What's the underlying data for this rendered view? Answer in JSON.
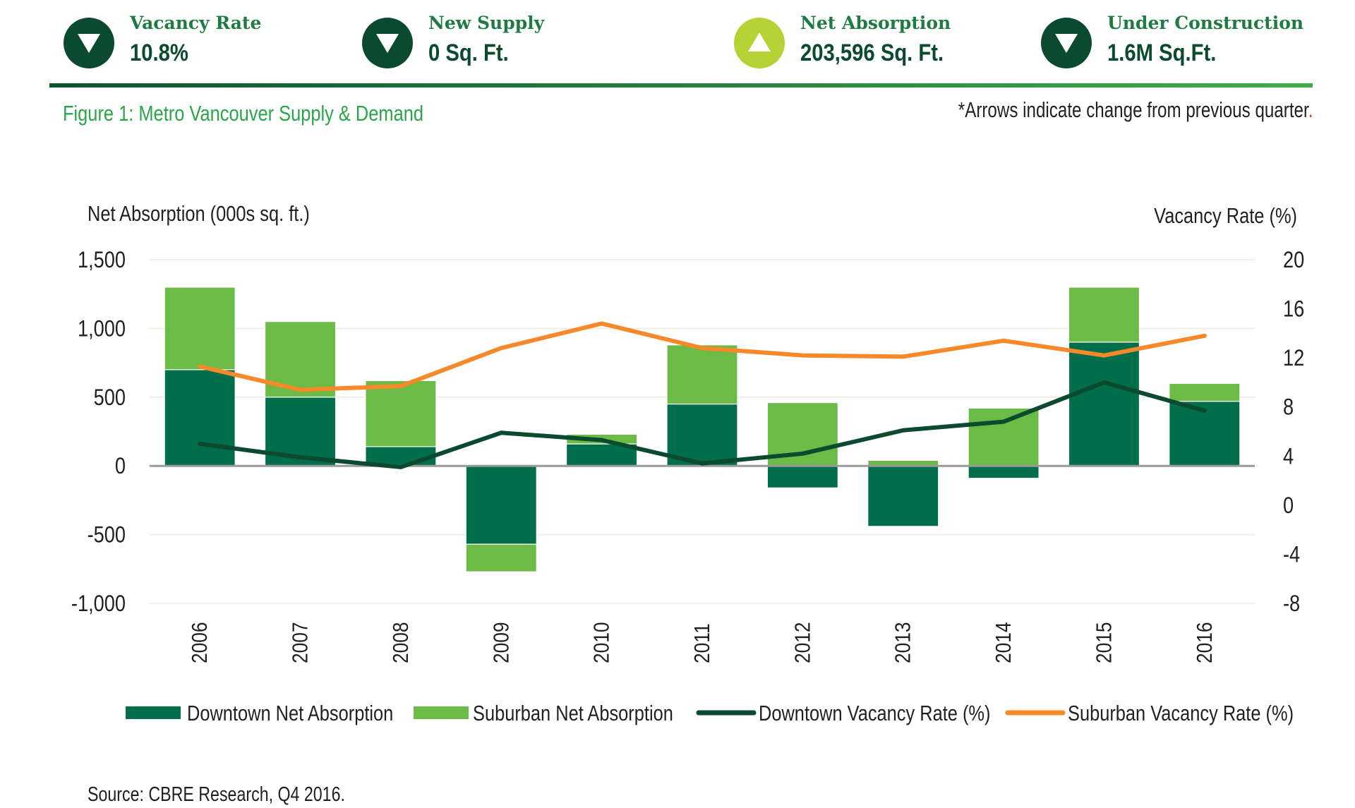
{
  "kpis": [
    {
      "label": "Vacancy Rate",
      "value": "10.8%",
      "direction": "down",
      "badge_color": "#0b4a2f"
    },
    {
      "label": "New Supply",
      "value": "0 Sq. Ft.",
      "direction": "down",
      "badge_color": "#0b4a2f"
    },
    {
      "label": "Net Absorption",
      "value": "203,596 Sq. Ft.",
      "direction": "up",
      "badge_color": "#b5d334"
    },
    {
      "label": "Under Construction",
      "value": "1.6M Sq.Ft.",
      "direction": "down",
      "badge_color": "#0b4a2f"
    }
  ],
  "figure": {
    "title": "Figure 1: Metro Vancouver Supply & Demand",
    "note": "*Arrows indicate change from previous quarter",
    "note_end": "."
  },
  "source": "Source: CBRE Research, Q4 2016.",
  "chart_data": {
    "type": "bar",
    "stacked": true,
    "categories": [
      "2006",
      "2007",
      "2008",
      "2009",
      "2010",
      "2011",
      "2012",
      "2013",
      "2014",
      "2015",
      "2016"
    ],
    "ylabel": "Net Absorption (000s sq. ft.)",
    "y2label": "Vacancy Rate (%)",
    "ylim": [
      -1000,
      1500
    ],
    "y2lim": [
      -8,
      20
    ],
    "yticks": [
      "1,500",
      "1,000",
      "500",
      "0",
      "-500",
      "-1,000"
    ],
    "yticks_values": [
      1500,
      1000,
      500,
      0,
      -500,
      -1000
    ],
    "y2ticks": [
      "20",
      "16",
      "12",
      "8",
      "4",
      "0",
      "-4",
      "-8"
    ],
    "y2ticks_values": [
      20,
      16,
      12,
      8,
      4,
      0,
      -4,
      -8
    ],
    "grid": "horizontal",
    "legend_position": "bottom",
    "series": [
      {
        "name": "Downtown Net Absorption",
        "kind": "bar",
        "axis": "left",
        "color": "#006e4a",
        "values": [
          700,
          500,
          140,
          -570,
          160,
          450,
          -160,
          -440,
          -90,
          900,
          470
        ]
      },
      {
        "name": "Suburban  Net Absorption",
        "kind": "bar",
        "axis": "left",
        "color": "#6cbb46",
        "values": [
          600,
          550,
          480,
          -200,
          70,
          430,
          460,
          40,
          420,
          400,
          130
        ]
      },
      {
        "name": "Downtown Vacancy Rate (%)",
        "kind": "line",
        "axis": "right",
        "color": "#0b4a2f",
        "values": [
          5.0,
          3.9,
          3.1,
          5.9,
          5.3,
          3.4,
          4.2,
          6.1,
          6.8,
          10.0,
          7.7
        ]
      },
      {
        "name": "Suburban Vacancy Rate (%)",
        "kind": "line",
        "axis": "right",
        "color": "#f7892b",
        "values": [
          11.3,
          9.4,
          9.7,
          12.8,
          14.8,
          12.8,
          12.2,
          12.1,
          13.4,
          12.2,
          13.8
        ]
      }
    ]
  }
}
